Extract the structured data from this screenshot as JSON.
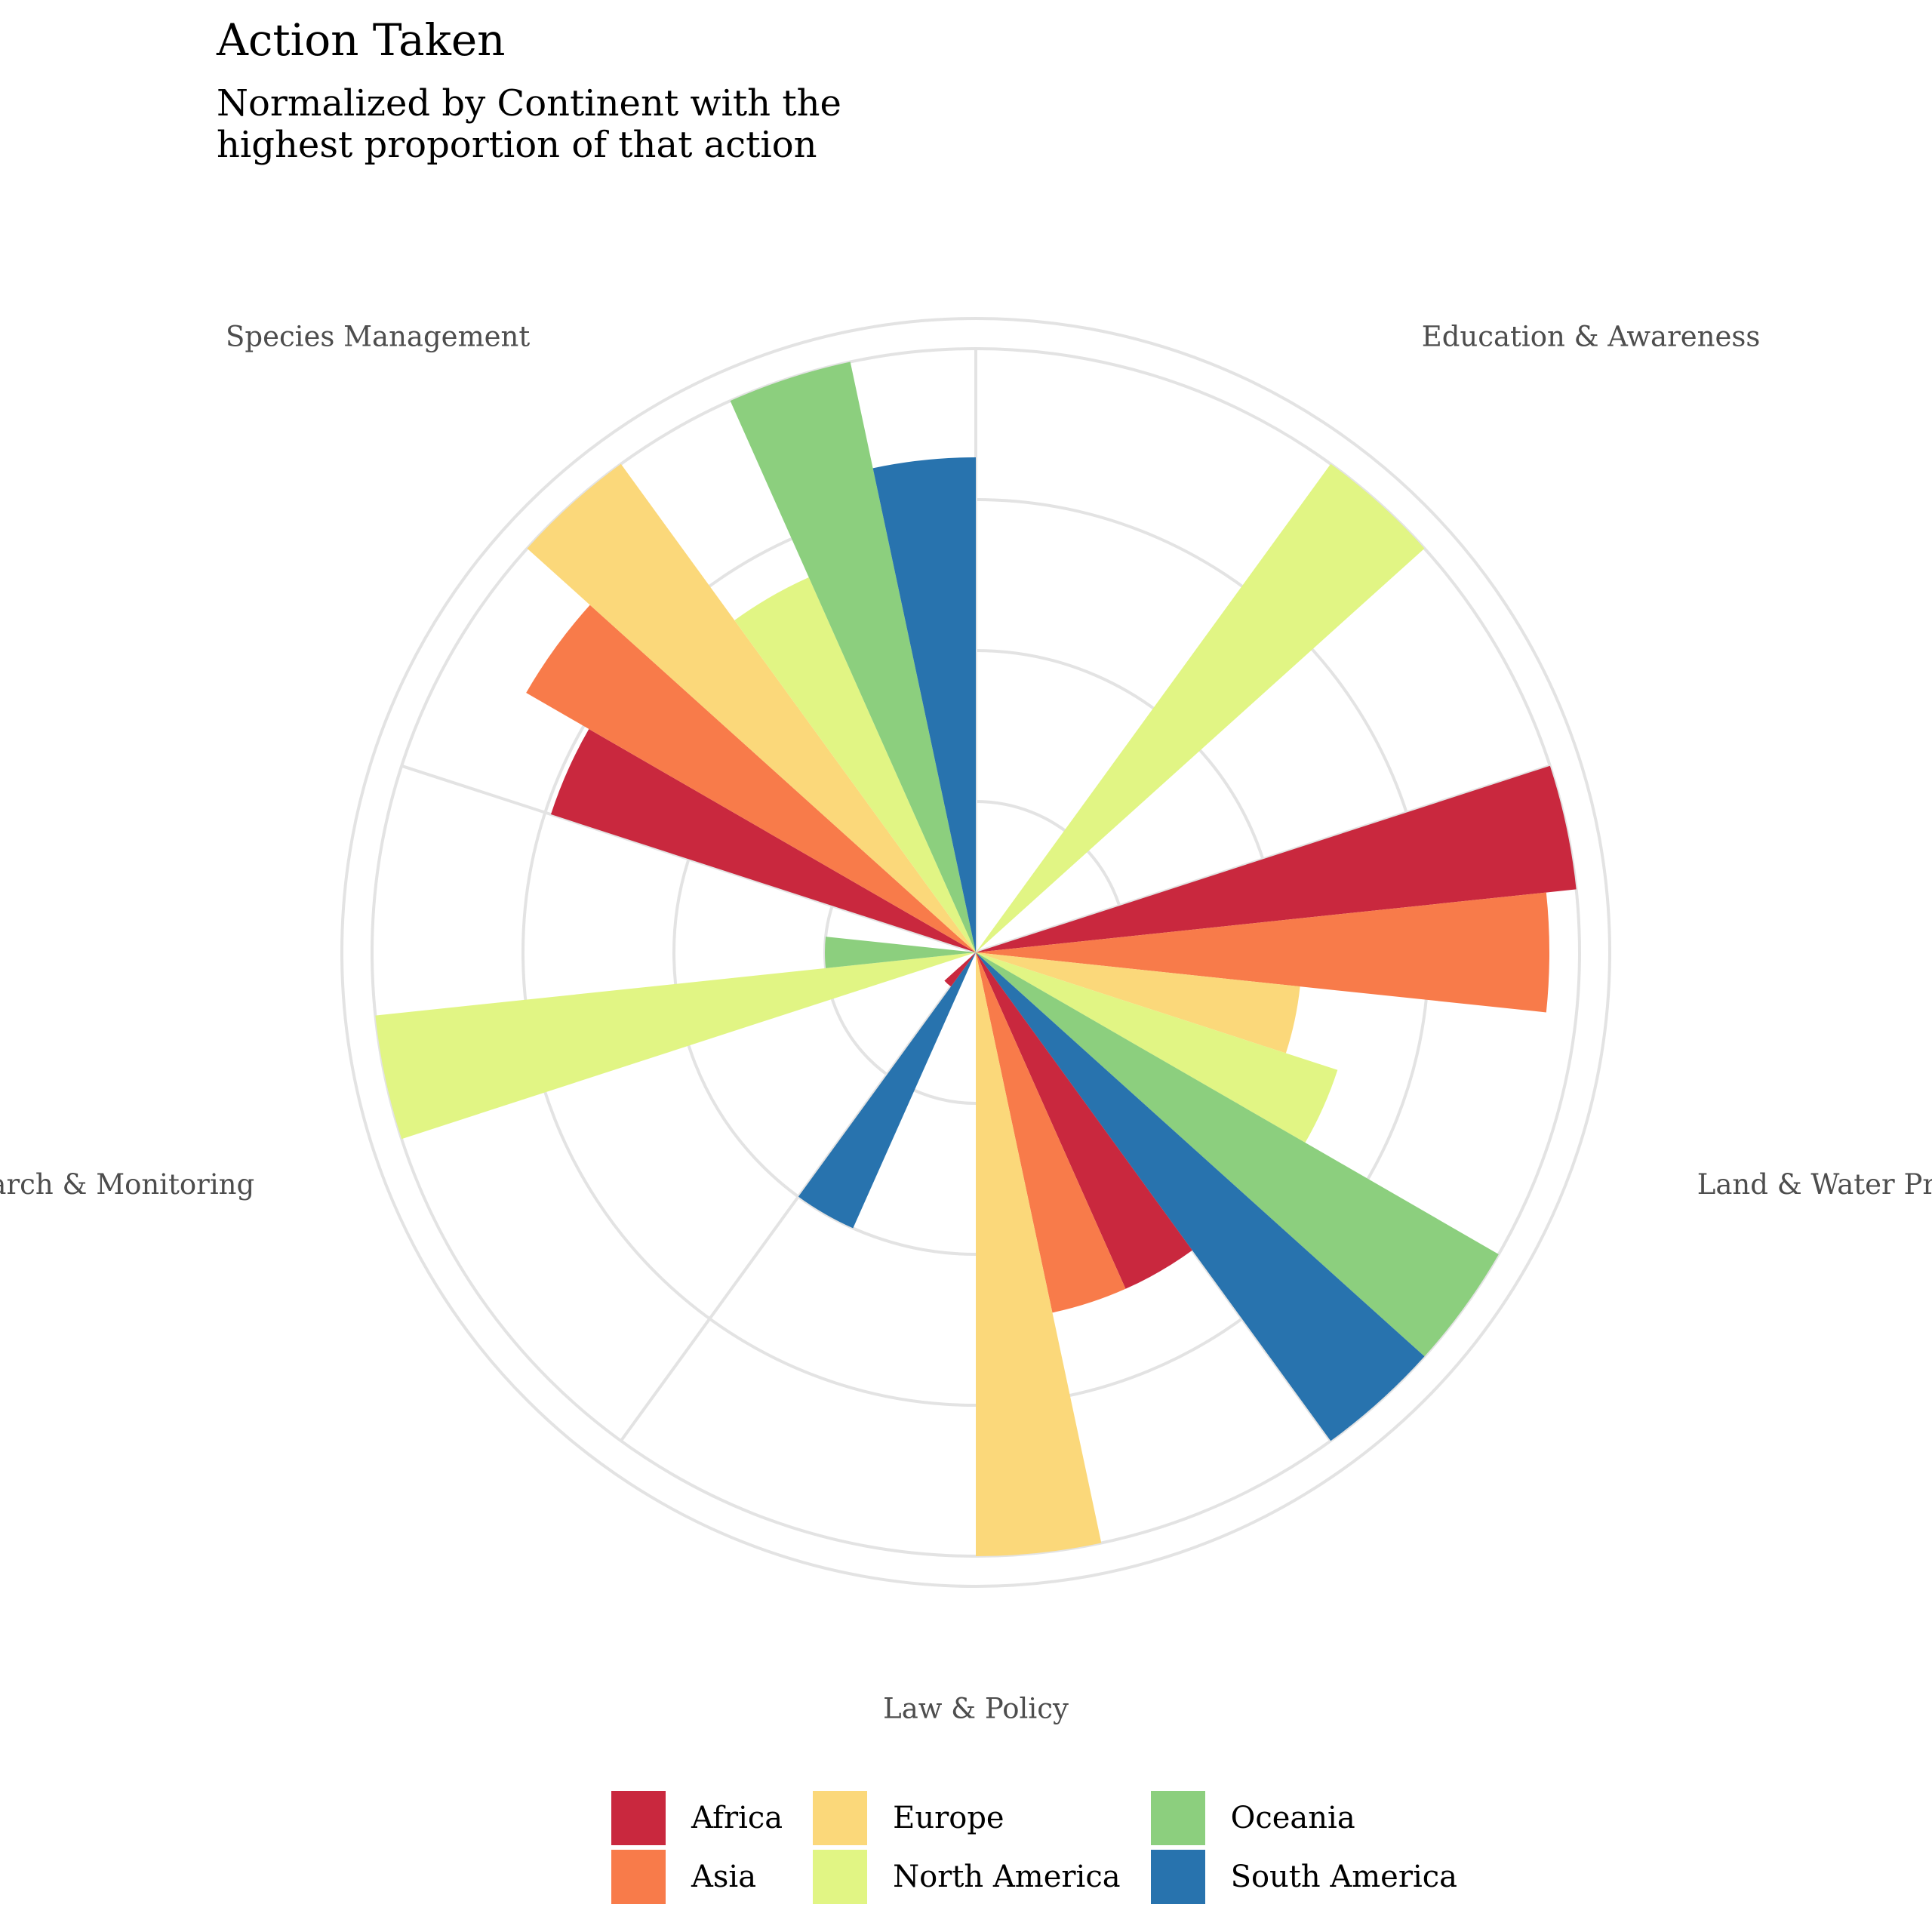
{
  "chart_data": {
    "type": "bar",
    "coord": "polar",
    "title": "Action Taken",
    "subtitle_lines": [
      "Normalized by Continent with the",
      "highest proportion of that action"
    ],
    "categories": [
      "Education & Awareness",
      "Land & Water Protection",
      "Law & Policy",
      "Research & Monitoring",
      "Species Management"
    ],
    "series": [
      {
        "name": "Africa",
        "color": "#c9283e",
        "values": [
          0.0,
          1.0,
          0.61,
          0.07,
          0.74
        ]
      },
      {
        "name": "Asia",
        "color": "#f87b4a",
        "values": [
          0.0,
          0.95,
          0.61,
          0.0,
          0.86
        ]
      },
      {
        "name": "Europe",
        "color": "#fbd87a",
        "values": [
          0.0,
          0.54,
          1.0,
          0.0,
          1.0
        ]
      },
      {
        "name": "North America",
        "color": "#e1f584",
        "values": [
          1.0,
          0.63,
          0.0,
          1.0,
          0.68
        ]
      },
      {
        "name": "Oceania",
        "color": "#8ccf7e",
        "values": [
          0.0,
          1.0,
          0.0,
          0.25,
          1.0
        ]
      },
      {
        "name": "South America",
        "color": "#2873ae",
        "values": [
          0.0,
          1.0,
          0.5,
          0.0,
          0.82
        ]
      }
    ],
    "grid": true,
    "legend_position": "bottom"
  }
}
